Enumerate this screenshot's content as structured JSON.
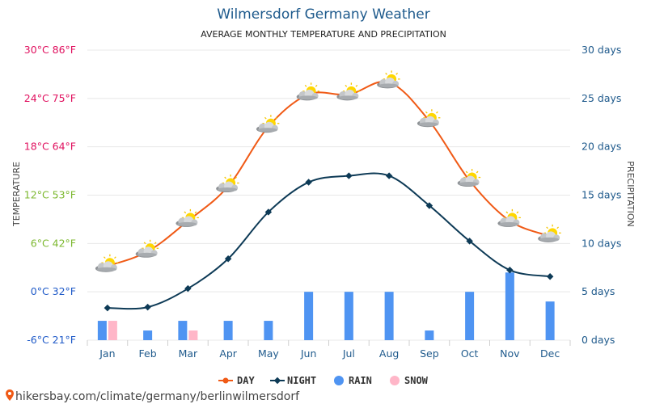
{
  "title": "Wilmersdorf Germany Weather",
  "subtitle": "AVERAGE MONTHLY TEMPERATURE AND PRECIPITATION",
  "left_axis_title": "TEMPERATURE",
  "right_axis_title": "PRECIPITATION",
  "left_ticks": [
    {
      "value": 30,
      "label": "30°C 86°F",
      "color": "#e0115f"
    },
    {
      "value": 24,
      "label": "24°C 75°F",
      "color": "#e0115f"
    },
    {
      "value": 18,
      "label": "18°C 64°F",
      "color": "#e0115f"
    },
    {
      "value": 12,
      "label": "12°C 53°F",
      "color": "#7cb82f"
    },
    {
      "value": 6,
      "label": "6°C 42°F",
      "color": "#7cb82f"
    },
    {
      "value": 0,
      "label": "0°C 32°F",
      "color": "#1f5ac8"
    },
    {
      "value": -6,
      "label": "-6°C 21°F",
      "color": "#1f5ac8"
    }
  ],
  "right_ticks": [
    "30 days",
    "25 days",
    "20 days",
    "15 days",
    "10 days",
    "5 days",
    "0 days"
  ],
  "legend": {
    "day": "DAY",
    "night": "NIGHT",
    "rain": "RAIN",
    "snow": "SNOW"
  },
  "source": "hikersbay.com/climate/germany/berlinwilmersdorf",
  "colors": {
    "day": "#f05a16",
    "night": "#0d3a56",
    "rain": "#4f94f2",
    "snow": "#ffb6c8",
    "grid": "#e8e8e8",
    "title": "#1e5a8c"
  },
  "icons": {
    "weather": "sun-behind-cloud-icon",
    "pin": "location-pin-icon"
  },
  "chart_data": {
    "type": "line",
    "categories": [
      "Jan",
      "Feb",
      "Mar",
      "Apr",
      "May",
      "Jun",
      "Jul",
      "Aug",
      "Sep",
      "Oct",
      "Nov",
      "Dec"
    ],
    "temperature_range": [
      -6,
      30
    ],
    "precipitation_range": [
      0,
      30
    ],
    "series": [
      {
        "name": "DAY",
        "unit": "°C",
        "values": [
          3.2,
          5.0,
          8.8,
          13.1,
          20.5,
          24.5,
          24.5,
          26.0,
          21.2,
          13.8,
          8.8,
          6.9
        ]
      },
      {
        "name": "NIGHT",
        "unit": "°C",
        "values": [
          -2.0,
          -1.9,
          0.4,
          4.1,
          9.9,
          13.6,
          14.4,
          14.4,
          10.7,
          6.3,
          2.7,
          1.9
        ]
      },
      {
        "name": "RAIN",
        "unit": "days",
        "values": [
          2,
          1,
          2,
          2,
          2,
          5,
          5,
          5,
          1,
          5,
          7,
          4
        ]
      },
      {
        "name": "SNOW",
        "unit": "days",
        "values": [
          2,
          0,
          1,
          0,
          0,
          0,
          0,
          0,
          0,
          0,
          0,
          0
        ]
      }
    ]
  }
}
